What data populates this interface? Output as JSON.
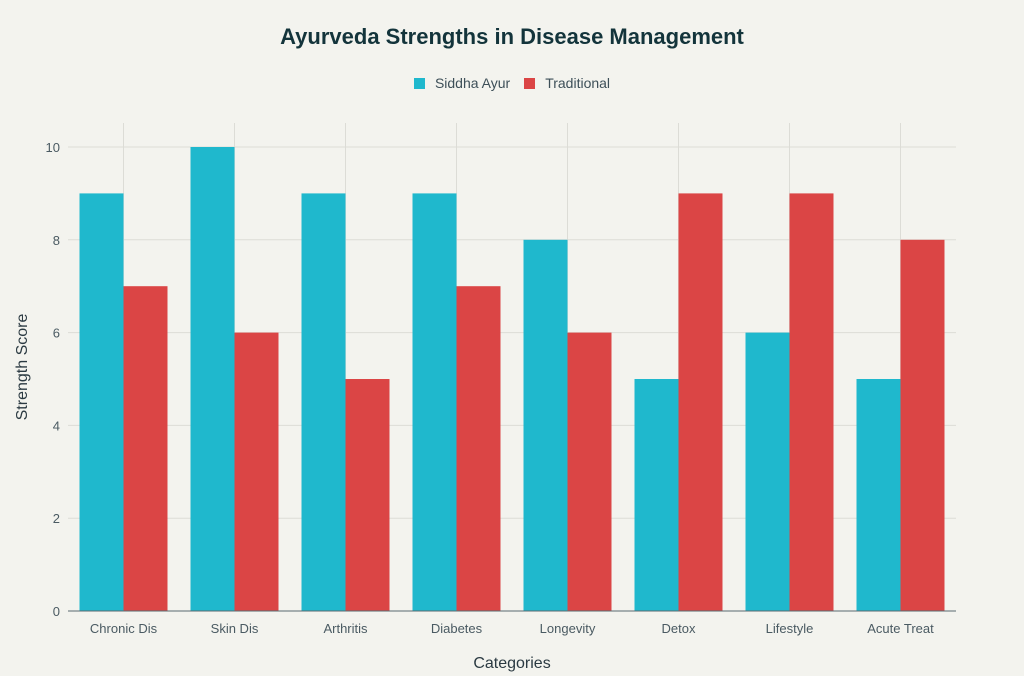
{
  "chart_data": {
    "type": "bar",
    "title": "Ayurveda Strengths in Disease Management",
    "xlabel": "Categories",
    "ylabel": "Strength Score",
    "ylim": [
      0,
      10.5
    ],
    "yticks": [
      0,
      2,
      4,
      6,
      8,
      10
    ],
    "grid": true,
    "legend_position": "top-center",
    "categories": [
      "Chronic Dis",
      "Skin Dis",
      "Arthritis",
      "Diabetes",
      "Longevity",
      "Detox",
      "Lifestyle",
      "Acute Treat"
    ],
    "series": [
      {
        "name": "Siddha Ayur",
        "color": "#1FB8CD",
        "values": [
          9,
          10,
          9,
          9,
          8,
          5,
          6,
          5
        ]
      },
      {
        "name": "Traditional",
        "color": "#DB4545",
        "values": [
          7,
          6,
          5,
          7,
          6,
          9,
          9,
          8
        ]
      }
    ]
  }
}
